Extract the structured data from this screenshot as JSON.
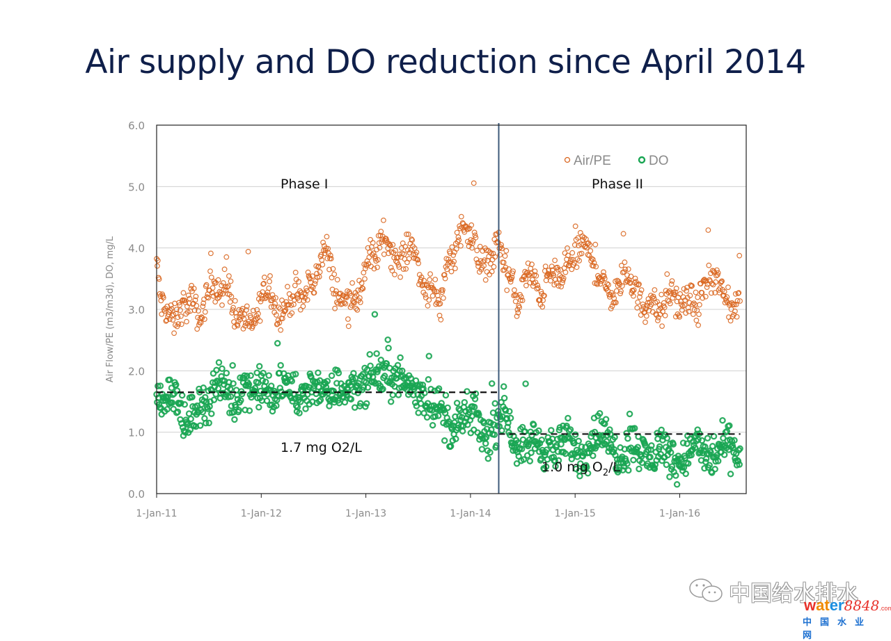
{
  "page": {
    "title": "Air supply and DO reduction since April 2014"
  },
  "chart_data": {
    "type": "scatter",
    "title": "Air supply and DO reduction since April 2014",
    "xlabel": "",
    "ylabel": "Air Flow/PE (m3/m3d), DO, mg/L",
    "ylim": [
      0,
      6
    ],
    "yticks": [
      "0.0",
      "1.0",
      "2.0",
      "3.0",
      "4.0",
      "5.0",
      "6.0"
    ],
    "xlim_years_since_2011": [
      0,
      5.62
    ],
    "xticks": [
      {
        "label": "1-Jan-11",
        "x": 0
      },
      {
        "label": "1-Jan-12",
        "x": 1
      },
      {
        "label": "1-Jan-13",
        "x": 2
      },
      {
        "label": "1-Jan-14",
        "x": 3
      },
      {
        "label": "1-Jan-15",
        "x": 4
      },
      {
        "label": "1-Jan-16",
        "x": 5
      }
    ],
    "grid": "horizontal",
    "legend": {
      "placement": "top-right",
      "entries": [
        "Air/PE",
        "DO"
      ]
    },
    "phase_divider_x": 3.27,
    "annotations": {
      "phase1": "Phase I",
      "phase2": "Phase II",
      "do_phase1": "1.7 mg O2/L",
      "do_phase2_main": "1.0 mg O",
      "do_phase2_sub": "2",
      "do_phase2_tail": "/L"
    },
    "reference_lines": [
      {
        "name": "Phase I mean DO",
        "y": 1.65,
        "x_from": 0,
        "x_to": 3.27
      },
      {
        "name": "Phase II mean DO",
        "y": 0.97,
        "x_from": 3.27,
        "x_to": 5.58
      }
    ],
    "series": [
      {
        "name": "Air/PE",
        "color": "#d9661f",
        "x_step_years": 0.0417,
        "x_start": 0.0,
        "trend": [
          3.8,
          3.1,
          3.0,
          2.9,
          2.8,
          2.9,
          3.1,
          3.0,
          3.2,
          3.0,
          2.8,
          3.1,
          3.3,
          3.5,
          3.3,
          3.2,
          3.4,
          3.3,
          2.9,
          2.8,
          2.9,
          2.8,
          2.7,
          2.9,
          3.2,
          3.3,
          3.4,
          3.1,
          2.9,
          3.0,
          3.1,
          3.2,
          3.3,
          3.1,
          3.2,
          3.5,
          3.3,
          3.7,
          3.9,
          4.0,
          3.6,
          3.3,
          3.2,
          3.1,
          3.2,
          3.3,
          3.0,
          3.4,
          3.7,
          3.9,
          3.8,
          4.0,
          4.2,
          4.1,
          3.9,
          3.8,
          3.8,
          3.9,
          4.0,
          4.1,
          3.6,
          3.4,
          3.3,
          3.5,
          3.2,
          3.0,
          3.5,
          3.9,
          3.8,
          4.2,
          4.3,
          4.4,
          4.2,
          4.0,
          3.7,
          3.7,
          3.9,
          3.8,
          4.1,
          4.0,
          3.6,
          3.5,
          3.3,
          3.0,
          3.4,
          3.6,
          3.5,
          3.4,
          3.2,
          3.4,
          3.6,
          3.5,
          3.6,
          3.4,
          3.7,
          3.9,
          3.8,
          4.0,
          4.1,
          3.9,
          3.8,
          3.6,
          3.5,
          3.3,
          3.3,
          3.2,
          3.4,
          3.5,
          3.6,
          3.4,
          3.3,
          3.1,
          3.0,
          3.2,
          3.1,
          2.9,
          3.0,
          3.1,
          3.3,
          3.2,
          3.0,
          3.1,
          3.2,
          3.1,
          3.0,
          3.3,
          3.4,
          3.5,
          3.5,
          3.4,
          3.2,
          3.1,
          3.0,
          3.1,
          3.3,
          3.2,
          3.0
        ],
        "spread": 0.22
      },
      {
        "name": "DO",
        "color": "#18a552",
        "x_step_years": 0.0417,
        "x_start": 0.0,
        "trend": [
          1.55,
          1.5,
          1.6,
          1.65,
          1.7,
          1.5,
          1.2,
          1.05,
          1.3,
          1.45,
          1.4,
          1.45,
          1.5,
          1.75,
          1.8,
          1.75,
          1.7,
          1.55,
          1.5,
          1.7,
          1.75,
          1.8,
          1.65,
          1.7,
          1.75,
          1.7,
          1.6,
          1.55,
          1.7,
          1.8,
          1.75,
          1.7,
          1.6,
          1.5,
          1.55,
          1.7,
          1.8,
          1.75,
          1.7,
          1.55,
          1.6,
          1.7,
          1.75,
          1.65,
          1.7,
          1.8,
          1.75,
          1.7,
          1.8,
          1.9,
          2.0,
          1.95,
          1.9,
          2.0,
          1.9,
          1.85,
          1.85,
          1.8,
          1.75,
          1.7,
          1.65,
          1.6,
          1.55,
          1.5,
          1.45,
          1.4,
          1.2,
          1.1,
          1.0,
          1.1,
          1.2,
          1.3,
          1.25,
          1.3,
          1.1,
          0.9,
          0.95,
          1.0,
          1.15,
          1.4,
          1.35,
          1.1,
          0.85,
          0.8,
          0.75,
          0.8,
          0.85,
          0.9,
          0.75,
          0.7,
          0.8,
          0.65,
          0.7,
          0.8,
          0.9,
          0.85,
          0.7,
          0.6,
          0.65,
          0.8,
          0.9,
          1.0,
          1.05,
          0.9,
          0.8,
          0.7,
          0.6,
          0.65,
          0.75,
          0.85,
          0.8,
          0.7,
          0.6,
          0.55,
          0.6,
          0.75,
          0.8,
          0.7,
          0.6,
          0.55,
          0.5,
          0.6,
          0.7,
          0.75,
          0.8,
          0.7,
          0.6,
          0.55,
          0.6,
          0.7,
          0.75,
          0.8,
          0.7,
          0.65,
          0.6
        ],
        "spread": 0.28
      }
    ]
  },
  "watermark": {
    "text_cn": "中国给水排水",
    "brand_w1": "w",
    "brand_w2": "at",
    "brand_w3": "er",
    "brand_num": "8848",
    "brand_com": ".com",
    "sub_cn": "中国水业网"
  }
}
